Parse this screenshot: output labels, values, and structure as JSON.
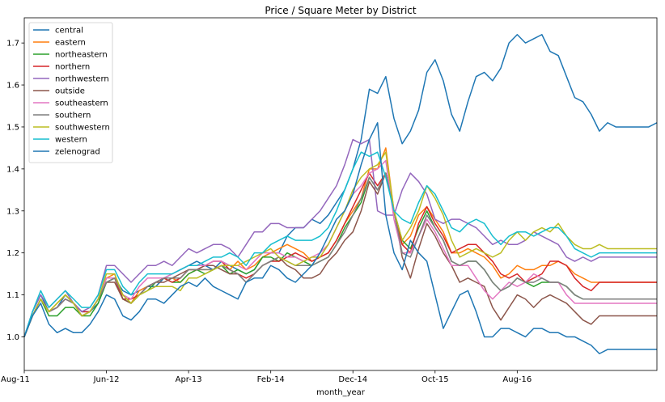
{
  "chart_data": {
    "type": "line",
    "title": "Price / Square Meter by District",
    "xlabel": "month_year",
    "ylabel": "",
    "ylim": [
      0.92,
      1.76
    ],
    "xlim": [
      0,
      77
    ],
    "yticks": [
      "1.0",
      "1.1",
      "1.2",
      "1.3",
      "1.4",
      "1.5",
      "1.6",
      "1.7"
    ],
    "ytick_values": [
      1.0,
      1.1,
      1.2,
      1.3,
      1.4,
      1.5,
      1.6,
      1.7
    ],
    "xticks": [
      "Aug-11",
      "Jun-12",
      "Apr-13",
      "Feb-14",
      "Dec-14",
      "Oct-15",
      "Aug-16"
    ],
    "xtick_values": [
      0,
      10,
      20,
      30,
      40,
      50,
      60
    ],
    "legend_position": "top-left",
    "grid": false,
    "series": [
      {
        "name": "central",
        "color": "#1f77b4",
        "values": [
          1.0,
          1.06,
          1.1,
          1.06,
          1.07,
          1.1,
          1.08,
          1.06,
          1.06,
          1.08,
          1.13,
          1.14,
          1.11,
          1.1,
          1.11,
          1.12,
          1.12,
          1.14,
          1.15,
          1.16,
          1.17,
          1.18,
          1.17,
          1.16,
          1.18,
          1.17,
          1.16,
          1.15,
          1.16,
          1.19,
          1.2,
          1.2,
          1.24,
          1.26,
          1.26,
          1.28,
          1.27,
          1.29,
          1.32,
          1.35,
          1.4,
          1.47,
          1.59,
          1.58,
          1.62,
          1.52,
          1.46,
          1.49,
          1.54,
          1.63,
          1.66,
          1.61,
          1.53,
          1.49,
          1.56,
          1.62,
          1.63,
          1.61,
          1.64,
          1.7,
          1.72,
          1.7,
          1.71,
          1.72,
          1.68,
          1.67,
          1.62,
          1.57,
          1.56,
          1.53,
          1.49,
          1.51,
          1.5,
          1.5,
          1.5,
          1.5,
          1.5,
          1.51
        ]
      },
      {
        "name": "eastern",
        "color": "#ff7f0e",
        "values": [
          1.0,
          1.05,
          1.09,
          1.06,
          1.08,
          1.1,
          1.08,
          1.05,
          1.06,
          1.09,
          1.14,
          1.15,
          1.09,
          1.08,
          1.11,
          1.12,
          1.13,
          1.14,
          1.14,
          1.13,
          1.15,
          1.16,
          1.16,
          1.16,
          1.17,
          1.16,
          1.18,
          1.16,
          1.17,
          1.19,
          1.2,
          1.21,
          1.22,
          1.21,
          1.2,
          1.18,
          1.19,
          1.2,
          1.23,
          1.27,
          1.3,
          1.33,
          1.4,
          1.4,
          1.45,
          1.3,
          1.22,
          1.24,
          1.29,
          1.31,
          1.28,
          1.25,
          1.2,
          1.2,
          1.21,
          1.2,
          1.19,
          1.17,
          1.14,
          1.15,
          1.17,
          1.16,
          1.16,
          1.17,
          1.17,
          1.18,
          1.17,
          1.15,
          1.14,
          1.13,
          1.13,
          1.13,
          1.13,
          1.13,
          1.13,
          1.13,
          1.13,
          1.13
        ]
      },
      {
        "name": "northeastern",
        "color": "#2ca02c",
        "values": [
          1.0,
          1.05,
          1.09,
          1.05,
          1.05,
          1.07,
          1.07,
          1.05,
          1.05,
          1.08,
          1.13,
          1.14,
          1.09,
          1.08,
          1.1,
          1.11,
          1.13,
          1.14,
          1.13,
          1.13,
          1.15,
          1.16,
          1.15,
          1.16,
          1.17,
          1.15,
          1.16,
          1.15,
          1.16,
          1.19,
          1.19,
          1.18,
          1.2,
          1.19,
          1.18,
          1.17,
          1.18,
          1.19,
          1.22,
          1.26,
          1.29,
          1.32,
          1.38,
          1.35,
          1.39,
          1.3,
          1.23,
          1.21,
          1.26,
          1.3,
          1.26,
          1.23,
          1.18,
          1.17,
          1.18,
          1.18,
          1.16,
          1.13,
          1.11,
          1.12,
          1.14,
          1.13,
          1.12,
          1.13,
          1.13,
          1.13,
          1.12,
          1.1,
          1.09,
          1.09,
          1.09,
          1.09,
          1.09,
          1.09,
          1.09,
          1.09,
          1.09,
          1.09
        ]
      },
      {
        "name": "northern",
        "color": "#d62728",
        "values": [
          1.0,
          1.05,
          1.09,
          1.06,
          1.07,
          1.09,
          1.08,
          1.06,
          1.06,
          1.09,
          1.14,
          1.14,
          1.09,
          1.09,
          1.1,
          1.12,
          1.13,
          1.14,
          1.13,
          1.14,
          1.16,
          1.16,
          1.17,
          1.18,
          1.18,
          1.16,
          1.15,
          1.14,
          1.15,
          1.17,
          1.18,
          1.18,
          1.19,
          1.2,
          1.19,
          1.18,
          1.19,
          1.2,
          1.23,
          1.27,
          1.31,
          1.35,
          1.39,
          1.36,
          1.39,
          1.3,
          1.22,
          1.2,
          1.27,
          1.31,
          1.27,
          1.24,
          1.2,
          1.21,
          1.22,
          1.22,
          1.2,
          1.18,
          1.15,
          1.14,
          1.15,
          1.13,
          1.14,
          1.15,
          1.18,
          1.18,
          1.17,
          1.14,
          1.12,
          1.11,
          1.13,
          1.13,
          1.13,
          1.13,
          1.13,
          1.13,
          1.13,
          1.13
        ]
      },
      {
        "name": "northwestern",
        "color": "#9467bd",
        "values": [
          1.0,
          1.06,
          1.1,
          1.07,
          1.09,
          1.11,
          1.08,
          1.06,
          1.07,
          1.1,
          1.17,
          1.17,
          1.15,
          1.13,
          1.15,
          1.17,
          1.17,
          1.18,
          1.17,
          1.19,
          1.21,
          1.2,
          1.21,
          1.22,
          1.22,
          1.21,
          1.19,
          1.22,
          1.25,
          1.25,
          1.27,
          1.27,
          1.26,
          1.26,
          1.26,
          1.28,
          1.3,
          1.33,
          1.36,
          1.41,
          1.47,
          1.46,
          1.47,
          1.3,
          1.29,
          1.29,
          1.35,
          1.39,
          1.37,
          1.34,
          1.28,
          1.27,
          1.28,
          1.28,
          1.27,
          1.26,
          1.24,
          1.22,
          1.23,
          1.22,
          1.22,
          1.23,
          1.25,
          1.24,
          1.23,
          1.22,
          1.19,
          1.18,
          1.19,
          1.18,
          1.19,
          1.19,
          1.19,
          1.19,
          1.19,
          1.19,
          1.19,
          1.19
        ]
      },
      {
        "name": "outside",
        "color": "#8c564b",
        "values": [
          1.0,
          1.05,
          1.09,
          1.06,
          1.07,
          1.09,
          1.08,
          1.05,
          1.06,
          1.09,
          1.13,
          1.13,
          1.09,
          1.08,
          1.1,
          1.12,
          1.13,
          1.13,
          1.14,
          1.15,
          1.16,
          1.16,
          1.17,
          1.17,
          1.16,
          1.15,
          1.15,
          1.13,
          1.15,
          1.17,
          1.18,
          1.19,
          1.17,
          1.16,
          1.14,
          1.14,
          1.15,
          1.18,
          1.2,
          1.23,
          1.25,
          1.3,
          1.37,
          1.34,
          1.39,
          1.3,
          1.19,
          1.14,
          1.21,
          1.27,
          1.24,
          1.2,
          1.17,
          1.13,
          1.14,
          1.13,
          1.12,
          1.07,
          1.04,
          1.07,
          1.1,
          1.09,
          1.07,
          1.09,
          1.1,
          1.09,
          1.08,
          1.06,
          1.04,
          1.03,
          1.05,
          1.05,
          1.05,
          1.05,
          1.05,
          1.05,
          1.05,
          1.05
        ]
      },
      {
        "name": "southeastern",
        "color": "#e377c2",
        "values": [
          1.0,
          1.05,
          1.09,
          1.06,
          1.07,
          1.09,
          1.08,
          1.05,
          1.06,
          1.09,
          1.14,
          1.14,
          1.1,
          1.09,
          1.12,
          1.14,
          1.14,
          1.14,
          1.15,
          1.16,
          1.17,
          1.17,
          1.17,
          1.18,
          1.18,
          1.17,
          1.17,
          1.16,
          1.18,
          1.2,
          1.2,
          1.2,
          1.19,
          1.19,
          1.18,
          1.19,
          1.2,
          1.22,
          1.26,
          1.3,
          1.34,
          1.36,
          1.39,
          1.4,
          1.42,
          1.28,
          1.2,
          1.2,
          1.24,
          1.28,
          1.25,
          1.21,
          1.17,
          1.17,
          1.17,
          1.14,
          1.11,
          1.09,
          1.11,
          1.13,
          1.12,
          1.13,
          1.15,
          1.14,
          1.13,
          1.13,
          1.1,
          1.08,
          1.08,
          1.08,
          1.08,
          1.08,
          1.08,
          1.08,
          1.08,
          1.08,
          1.08,
          1.08
        ]
      },
      {
        "name": "southern",
        "color": "#7f7f7f",
        "values": [
          1.0,
          1.05,
          1.09,
          1.06,
          1.07,
          1.09,
          1.08,
          1.05,
          1.06,
          1.09,
          1.13,
          1.14,
          1.1,
          1.08,
          1.1,
          1.12,
          1.13,
          1.14,
          1.14,
          1.14,
          1.16,
          1.16,
          1.16,
          1.16,
          1.17,
          1.16,
          1.15,
          1.13,
          1.15,
          1.17,
          1.18,
          1.19,
          1.18,
          1.17,
          1.17,
          1.17,
          1.18,
          1.19,
          1.22,
          1.25,
          1.29,
          1.33,
          1.38,
          1.35,
          1.39,
          1.3,
          1.2,
          1.19,
          1.24,
          1.29,
          1.26,
          1.23,
          1.18,
          1.17,
          1.18,
          1.18,
          1.16,
          1.13,
          1.11,
          1.12,
          1.14,
          1.13,
          1.13,
          1.14,
          1.13,
          1.13,
          1.12,
          1.1,
          1.09,
          1.09,
          1.09,
          1.09,
          1.09,
          1.09,
          1.09,
          1.09,
          1.09,
          1.09
        ]
      },
      {
        "name": "southwestern",
        "color": "#bcbd22",
        "values": [
          1.0,
          1.05,
          1.09,
          1.06,
          1.08,
          1.1,
          1.08,
          1.05,
          1.06,
          1.09,
          1.15,
          1.15,
          1.1,
          1.08,
          1.1,
          1.11,
          1.12,
          1.12,
          1.12,
          1.11,
          1.14,
          1.14,
          1.15,
          1.16,
          1.17,
          1.17,
          1.17,
          1.18,
          1.19,
          1.2,
          1.21,
          1.19,
          1.18,
          1.17,
          1.18,
          1.19,
          1.19,
          1.22,
          1.26,
          1.3,
          1.35,
          1.38,
          1.4,
          1.41,
          1.44,
          1.3,
          1.23,
          1.26,
          1.3,
          1.36,
          1.33,
          1.29,
          1.23,
          1.19,
          1.2,
          1.21,
          1.2,
          1.19,
          1.2,
          1.23,
          1.25,
          1.23,
          1.25,
          1.26,
          1.25,
          1.27,
          1.24,
          1.22,
          1.21,
          1.21,
          1.22,
          1.21,
          1.21,
          1.21,
          1.21,
          1.21,
          1.21,
          1.21
        ]
      },
      {
        "name": "western",
        "color": "#17becf",
        "values": [
          1.0,
          1.06,
          1.11,
          1.07,
          1.09,
          1.11,
          1.09,
          1.07,
          1.07,
          1.1,
          1.16,
          1.16,
          1.12,
          1.1,
          1.13,
          1.15,
          1.15,
          1.15,
          1.15,
          1.16,
          1.17,
          1.17,
          1.18,
          1.19,
          1.19,
          1.2,
          1.19,
          1.17,
          1.2,
          1.2,
          1.22,
          1.23,
          1.24,
          1.23,
          1.23,
          1.23,
          1.24,
          1.26,
          1.3,
          1.35,
          1.4,
          1.44,
          1.43,
          1.44,
          1.38,
          1.3,
          1.28,
          1.27,
          1.32,
          1.36,
          1.34,
          1.3,
          1.26,
          1.25,
          1.27,
          1.28,
          1.27,
          1.24,
          1.22,
          1.24,
          1.25,
          1.25,
          1.24,
          1.25,
          1.26,
          1.26,
          1.24,
          1.21,
          1.2,
          1.19,
          1.2,
          1.2,
          1.2,
          1.2,
          1.2,
          1.2,
          1.2,
          1.2
        ]
      },
      {
        "name": "zelenograd",
        "color": "#1f77b4",
        "values": [
          1.0,
          1.05,
          1.08,
          1.03,
          1.01,
          1.02,
          1.01,
          1.01,
          1.03,
          1.06,
          1.1,
          1.09,
          1.05,
          1.04,
          1.06,
          1.09,
          1.09,
          1.08,
          1.1,
          1.12,
          1.13,
          1.12,
          1.14,
          1.12,
          1.11,
          1.1,
          1.09,
          1.13,
          1.14,
          1.14,
          1.17,
          1.16,
          1.14,
          1.13,
          1.15,
          1.17,
          1.2,
          1.24,
          1.28,
          1.3,
          1.34,
          1.41,
          1.47,
          1.51,
          1.29,
          1.2,
          1.16,
          1.23,
          1.2,
          1.18,
          1.1,
          1.02,
          1.06,
          1.1,
          1.11,
          1.06,
          1.0,
          1.0,
          1.02,
          1.02,
          1.01,
          1.0,
          1.02,
          1.02,
          1.01,
          1.01,
          1.0,
          1.0,
          0.99,
          0.98,
          0.96,
          0.97,
          0.97,
          0.97,
          0.97,
          0.97,
          0.97,
          0.97
        ]
      }
    ]
  }
}
